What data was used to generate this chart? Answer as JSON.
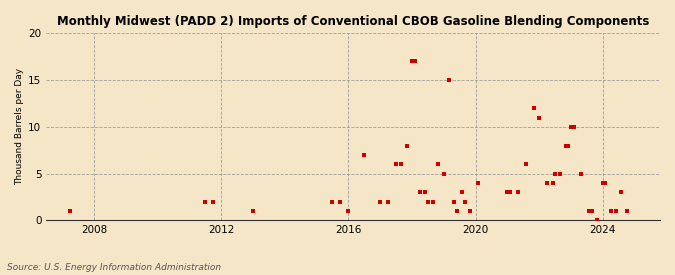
{
  "title": "Monthly Midwest (PADD 2) Imports of Conventional CBOB Gasoline Blending Components",
  "ylabel": "Thousand Barrels per Day",
  "source": "Source: U.S. Energy Information Administration",
  "background_color": "#f5e6c8",
  "plot_bg_color": "#f5e6c8",
  "marker_color": "#cc0000",
  "ylim": [
    0,
    20
  ],
  "yticks": [
    0,
    5,
    10,
    15,
    20
  ],
  "xlim_start": 2006.5,
  "xlim_end": 2025.8,
  "xticks": [
    2008,
    2012,
    2016,
    2020,
    2024
  ],
  "data_points": [
    [
      2007.25,
      1
    ],
    [
      2011.5,
      2
    ],
    [
      2011.75,
      2
    ],
    [
      2013.0,
      1
    ],
    [
      2015.5,
      2
    ],
    [
      2015.75,
      2
    ],
    [
      2016.0,
      1
    ],
    [
      2016.5,
      7
    ],
    [
      2017.0,
      2
    ],
    [
      2017.25,
      2
    ],
    [
      2017.5,
      6
    ],
    [
      2017.65,
      6
    ],
    [
      2017.83,
      8
    ],
    [
      2018.0,
      17
    ],
    [
      2018.08,
      17
    ],
    [
      2018.25,
      3
    ],
    [
      2018.42,
      3
    ],
    [
      2018.5,
      2
    ],
    [
      2018.67,
      2
    ],
    [
      2018.83,
      6
    ],
    [
      2019.0,
      5
    ],
    [
      2019.17,
      15
    ],
    [
      2019.33,
      2
    ],
    [
      2019.42,
      1
    ],
    [
      2019.58,
      3
    ],
    [
      2019.67,
      2
    ],
    [
      2019.83,
      1
    ],
    [
      2020.08,
      4
    ],
    [
      2021.0,
      3
    ],
    [
      2021.08,
      3
    ],
    [
      2021.33,
      3
    ],
    [
      2021.58,
      6
    ],
    [
      2021.83,
      12
    ],
    [
      2022.0,
      11
    ],
    [
      2022.25,
      4
    ],
    [
      2022.42,
      4
    ],
    [
      2022.5,
      5
    ],
    [
      2022.67,
      5
    ],
    [
      2022.83,
      8
    ],
    [
      2022.92,
      8
    ],
    [
      2023.0,
      10
    ],
    [
      2023.08,
      10
    ],
    [
      2023.33,
      5
    ],
    [
      2023.58,
      1
    ],
    [
      2023.67,
      1
    ],
    [
      2023.83,
      0
    ],
    [
      2024.0,
      4
    ],
    [
      2024.08,
      4
    ],
    [
      2024.25,
      1
    ],
    [
      2024.42,
      1
    ],
    [
      2024.58,
      3
    ],
    [
      2024.75,
      1
    ]
  ]
}
